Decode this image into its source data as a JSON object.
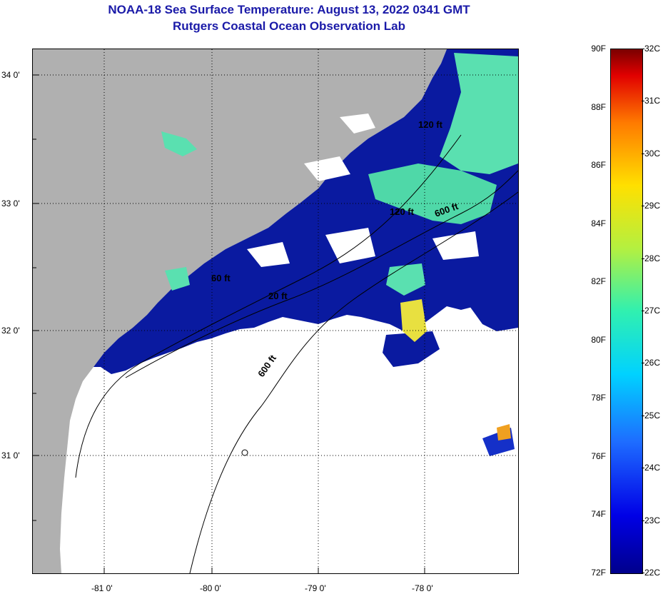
{
  "title": {
    "line1": "NOAA-18 Sea Surface Temperature:  August 13, 2022 0341 GMT",
    "line2": "Rutgers Coastal Ocean Observation Lab"
  },
  "map": {
    "lat_labels": [
      "34 0'",
      "33 0'",
      "32 0'",
      "31 0'"
    ],
    "lon_labels": [
      "-81 0'",
      "-80 0'",
      "-79 0'",
      "-78 0'"
    ],
    "contour_labels": [
      "20 ft",
      "120 ft",
      "600 ft",
      "60 ft",
      "120 ft",
      "600 ft"
    ],
    "colors": {
      "land": "#b0b0b0",
      "cloud": "#ffffff",
      "water_cold": "#0a1aa0",
      "water_warm": "#5af0a0"
    }
  },
  "colorbar": {
    "fahrenheit": [
      "90F",
      "88F",
      "86F",
      "84F",
      "82F",
      "80F",
      "78F",
      "76F",
      "74F",
      "72F"
    ],
    "celsius": [
      "32C",
      "31C",
      "30C",
      "29C",
      "28C",
      "27C",
      "26C",
      "25C",
      "24C",
      "23C",
      "22C"
    ]
  }
}
